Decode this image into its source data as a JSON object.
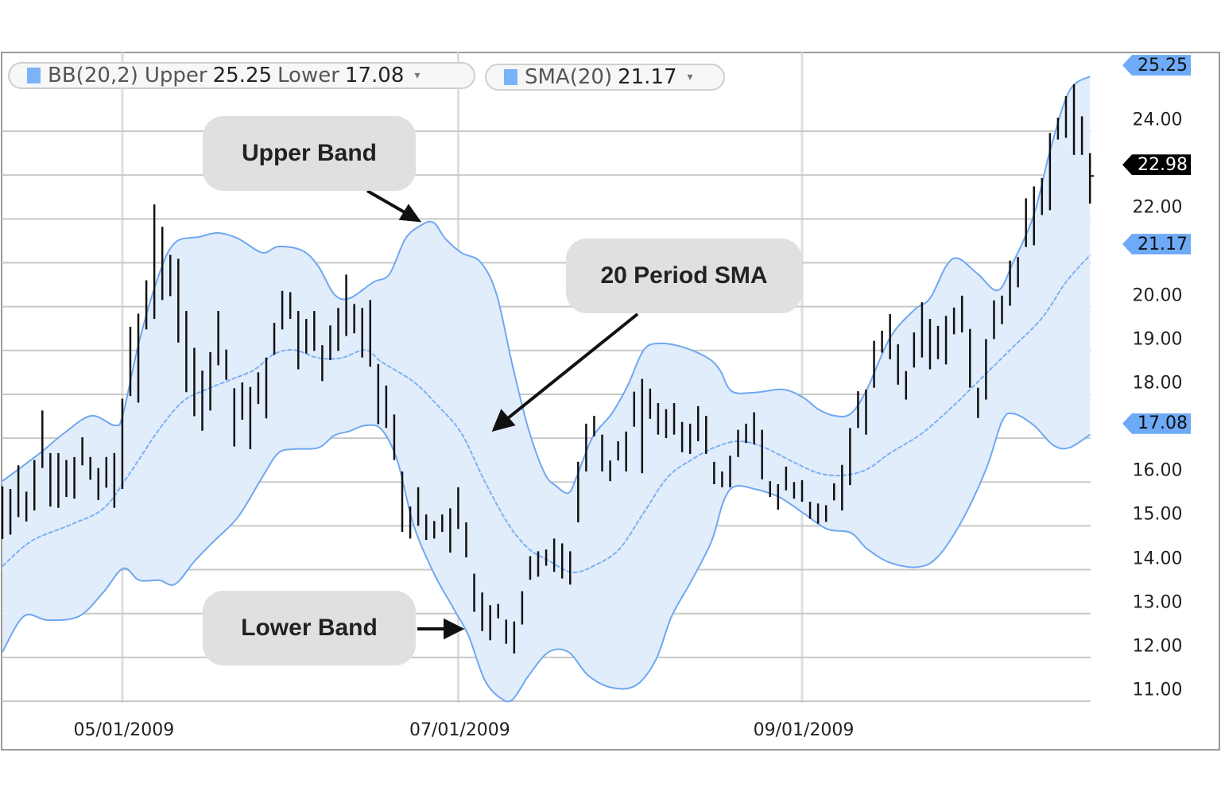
{
  "legend": [
    {
      "label": "BB(20,2)",
      "upper_label": "Upper",
      "upper": "25.25",
      "lower_label": "Lower",
      "lower": "17.08",
      "caret": "▾"
    },
    {
      "label": "SMA(20)",
      "value": "21.17",
      "caret": "▾"
    }
  ],
  "callouts": {
    "upper": "Upper Band",
    "sma": "20 Period SMA",
    "lower": "Lower Band"
  },
  "colors": {
    "band_line": "#6fa8f0",
    "band_fill": "#e2edfc",
    "bars": "#111111",
    "tag_blue": "#6eaaf6",
    "tag_black": "#000000",
    "grid": "#c8c8c8"
  },
  "chart_data": {
    "type": "ohlc-bar-with-bollinger-bands",
    "title": "",
    "ylim": [
      9.9,
      25.8
    ],
    "grid": true,
    "y_ticks": [
      "11.00",
      "12.00",
      "13.00",
      "14.00",
      "15.00",
      "16.00",
      "18.00",
      "19.00",
      "20.00",
      "22.00",
      "24.00"
    ],
    "y_tick_values": [
      11,
      12,
      13,
      14,
      15,
      16,
      18,
      19,
      20,
      22,
      24
    ],
    "x_ticks": [
      {
        "label": "05/01/2009",
        "index": 15
      },
      {
        "label": "07/01/2009",
        "index": 57
      },
      {
        "label": "09/01/2009",
        "index": 100
      }
    ],
    "price_tags": [
      {
        "label": "25.25",
        "value": 25.25,
        "style": "blue"
      },
      {
        "label": "22.98",
        "value": 22.98,
        "style": "black"
      },
      {
        "label": "21.17",
        "value": 21.17,
        "style": "blue"
      },
      {
        "label": "17.08",
        "value": 17.08,
        "style": "blue"
      }
    ],
    "last_close": 22.98,
    "bars_high_low": [
      [
        15.9,
        14.7
      ],
      [
        15.84,
        14.8
      ],
      [
        16.38,
        15.2
      ],
      [
        15.78,
        15.1
      ],
      [
        16.5,
        15.35
      ],
      [
        17.63,
        16.32
      ],
      [
        16.66,
        15.44
      ],
      [
        16.66,
        15.41
      ],
      [
        16.5,
        15.66
      ],
      [
        16.57,
        15.62
      ],
      [
        17.02,
        16.38
      ],
      [
        16.57,
        16.05
      ],
      [
        16.32,
        15.59
      ],
      [
        16.57,
        15.87
      ],
      [
        16.66,
        15.41
      ],
      [
        17.9,
        15.84
      ],
      [
        19.54,
        17.96
      ],
      [
        19.84,
        17.81
      ],
      [
        20.6,
        19.48
      ],
      [
        22.33,
        19.72
      ],
      [
        21.82,
        20.15
      ],
      [
        21.18,
        20.24
      ],
      [
        21.09,
        19.18
      ],
      [
        19.9,
        18.05
      ],
      [
        19.06,
        17.5
      ],
      [
        18.54,
        17.17
      ],
      [
        18.96,
        17.63
      ],
      [
        19.9,
        18.66
      ],
      [
        19.02,
        18.33
      ],
      [
        18.14,
        16.81
      ],
      [
        18.27,
        17.42
      ],
      [
        18.17,
        16.75
      ],
      [
        18.5,
        17.78
      ],
      [
        18.84,
        17.45
      ],
      [
        19.63,
        18.9
      ],
      [
        20.36,
        19.48
      ],
      [
        20.33,
        19.72
      ],
      [
        19.9,
        18.57
      ],
      [
        19.72,
        18.93
      ],
      [
        19.9,
        18.99
      ],
      [
        19.12,
        18.3
      ],
      [
        19.57,
        18.78
      ],
      [
        19.97,
        18.99
      ],
      [
        20.73,
        19.33
      ],
      [
        20.06,
        19.39
      ],
      [
        19.97,
        18.84
      ],
      [
        20.15,
        18.63
      ],
      [
        18.69,
        17.32
      ],
      [
        18.2,
        17.23
      ],
      [
        17.54,
        16.5
      ],
      [
        16.24,
        14.86
      ],
      [
        15.44,
        14.71
      ],
      [
        15.88,
        15.0
      ],
      [
        15.26,
        14.68
      ],
      [
        15.11,
        14.71
      ],
      [
        15.26,
        14.86
      ],
      [
        15.4,
        14.39
      ],
      [
        15.88,
        14.93
      ],
      [
        15.08,
        14.28
      ],
      [
        13.91,
        13.04
      ],
      [
        13.48,
        12.6
      ],
      [
        13.19,
        12.39
      ],
      [
        13.22,
        12.89
      ],
      [
        12.86,
        12.31
      ],
      [
        12.82,
        12.09
      ],
      [
        13.51,
        12.75
      ],
      [
        14.31,
        13.77
      ],
      [
        14.42,
        13.84
      ],
      [
        14.46,
        14.09
      ],
      [
        14.71,
        13.95
      ],
      [
        14.6,
        13.8
      ],
      [
        14.42,
        13.66
      ],
      [
        16.46,
        15.08
      ],
      [
        17.33,
        16.24
      ],
      [
        17.51,
        17.04
      ],
      [
        17.08,
        16.24
      ],
      [
        16.49,
        16.02
      ],
      [
        16.93,
        16.49
      ],
      [
        17.15,
        16.24
      ],
      [
        18.06,
        17.26
      ],
      [
        18.35,
        16.2
      ],
      [
        18.13,
        17.44
      ],
      [
        17.8,
        17.08
      ],
      [
        17.66,
        17.0
      ],
      [
        17.8,
        17.08
      ],
      [
        17.37,
        16.68
      ],
      [
        17.33,
        16.64
      ],
      [
        17.73,
        16.93
      ],
      [
        17.51,
        16.64
      ],
      [
        16.46,
        15.95
      ],
      [
        16.24,
        15.88
      ],
      [
        16.6,
        15.88
      ],
      [
        17.19,
        16.57
      ],
      [
        17.33,
        16.89
      ],
      [
        17.59,
        16.86
      ],
      [
        17.19,
        16.06
      ],
      [
        16.02,
        15.66
      ],
      [
        15.95,
        15.37
      ],
      [
        16.35,
        15.81
      ],
      [
        16.0,
        15.62
      ],
      [
        16.04,
        15.55
      ],
      [
        15.55,
        15.16
      ],
      [
        15.51,
        15.05
      ],
      [
        15.47,
        15.09
      ],
      [
        15.97,
        15.58
      ],
      [
        16.39,
        15.35
      ],
      [
        17.23,
        15.93
      ],
      [
        18.07,
        17.23
      ],
      [
        18.11,
        17.08
      ],
      [
        19.22,
        18.15
      ],
      [
        19.45,
        18.95
      ],
      [
        19.83,
        18.8
      ],
      [
        19.14,
        18.22
      ],
      [
        18.53,
        17.88
      ],
      [
        19.41,
        18.61
      ],
      [
        20.1,
        18.84
      ],
      [
        19.72,
        18.57
      ],
      [
        19.56,
        18.8
      ],
      [
        19.79,
        18.68
      ],
      [
        19.98,
        19.37
      ],
      [
        20.25,
        19.41
      ],
      [
        19.49,
        18.15
      ],
      [
        18.15,
        17.46
      ],
      [
        19.26,
        17.88
      ],
      [
        20.14,
        19.26
      ],
      [
        20.25,
        19.6
      ],
      [
        21.05,
        20.02
      ],
      [
        21.13,
        20.44
      ],
      [
        22.47,
        21.36
      ],
      [
        22.74,
        21.4
      ],
      [
        22.93,
        22.09
      ],
      [
        23.96,
        22.2
      ],
      [
        24.31,
        23.81
      ],
      [
        24.8,
        23.85
      ],
      [
        25.07,
        23.46
      ],
      [
        24.34,
        23.46
      ],
      [
        23.5,
        22.35
      ]
    ],
    "upper_band": [
      [
        0,
        16.02
      ],
      [
        4.7,
        16.66
      ],
      [
        7.7,
        17.11
      ],
      [
        11.1,
        17.51
      ],
      [
        14.1,
        17.29
      ],
      [
        15.1,
        17.56
      ],
      [
        17.1,
        19.2
      ],
      [
        19.6,
        20.74
      ],
      [
        21.6,
        21.46
      ],
      [
        24.6,
        21.59
      ],
      [
        27,
        21.68
      ],
      [
        29.5,
        21.55
      ],
      [
        32.5,
        21.23
      ],
      [
        34.5,
        21.37
      ],
      [
        37.5,
        21.28
      ],
      [
        39.5,
        20.92
      ],
      [
        41.5,
        20.28
      ],
      [
        43.4,
        20.19
      ],
      [
        46.4,
        20.56
      ],
      [
        48.4,
        20.74
      ],
      [
        50.4,
        21.55
      ],
      [
        52.4,
        21.86
      ],
      [
        53.9,
        21.92
      ],
      [
        55.4,
        21.55
      ],
      [
        57.4,
        21.23
      ],
      [
        59.8,
        21.01
      ],
      [
        61.8,
        20.28
      ],
      [
        63.8,
        18.65
      ],
      [
        65.8,
        17.2
      ],
      [
        67.8,
        16.2
      ],
      [
        69.3,
        15.9
      ],
      [
        70.8,
        15.75
      ],
      [
        71.8,
        16.11
      ],
      [
        73.8,
        17.02
      ],
      [
        76.2,
        17.56
      ],
      [
        78.2,
        18.2
      ],
      [
        80.2,
        19.01
      ],
      [
        82.2,
        19.16
      ],
      [
        85.2,
        19.07
      ],
      [
        88.2,
        18.83
      ],
      [
        89.7,
        18.56
      ],
      [
        91.2,
        18.07
      ],
      [
        94.1,
        18.04
      ],
      [
        97.6,
        18.11
      ],
      [
        100.1,
        17.93
      ],
      [
        102.1,
        17.65
      ],
      [
        104.1,
        17.51
      ],
      [
        106.1,
        17.56
      ],
      [
        108.1,
        18.11
      ],
      [
        111,
        19.29
      ],
      [
        114,
        19.92
      ],
      [
        116,
        20.19
      ],
      [
        118,
        20.92
      ],
      [
        119.5,
        21.1
      ],
      [
        122,
        20.74
      ],
      [
        124.5,
        20.37
      ],
      [
        126.4,
        21.01
      ],
      [
        129,
        22.1
      ],
      [
        131,
        23.55
      ],
      [
        133.4,
        24.91
      ],
      [
        136,
        25.25
      ]
    ],
    "middle_sma": [
      [
        0,
        14.08
      ],
      [
        3.7,
        14.66
      ],
      [
        8.6,
        15.03
      ],
      [
        12.6,
        15.39
      ],
      [
        15.6,
        16.11
      ],
      [
        19.6,
        17.2
      ],
      [
        22.6,
        17.84
      ],
      [
        25.5,
        18.11
      ],
      [
        28.5,
        18.33
      ],
      [
        31.5,
        18.56
      ],
      [
        34,
        18.92
      ],
      [
        36.5,
        19.01
      ],
      [
        39.5,
        18.83
      ],
      [
        42.4,
        18.83
      ],
      [
        45.4,
        19.01
      ],
      [
        47.4,
        18.74
      ],
      [
        51.4,
        18.29
      ],
      [
        54.4,
        17.75
      ],
      [
        57.4,
        17.11
      ],
      [
        60.3,
        16.02
      ],
      [
        63.3,
        15.03
      ],
      [
        65.8,
        14.48
      ],
      [
        68.3,
        14.21
      ],
      [
        71.3,
        13.94
      ],
      [
        74.3,
        14.12
      ],
      [
        77.2,
        14.48
      ],
      [
        80.2,
        15.3
      ],
      [
        83.2,
        16.11
      ],
      [
        86.2,
        16.51
      ],
      [
        89.2,
        16.8
      ],
      [
        92.1,
        16.93
      ],
      [
        95.1,
        16.8
      ],
      [
        99.1,
        16.44
      ],
      [
        102.1,
        16.2
      ],
      [
        105.1,
        16.15
      ],
      [
        108.1,
        16.29
      ],
      [
        111,
        16.66
      ],
      [
        115,
        17.11
      ],
      [
        119,
        17.75
      ],
      [
        122,
        18.29
      ],
      [
        126,
        19.01
      ],
      [
        130,
        19.74
      ],
      [
        133,
        20.56
      ],
      [
        136,
        21.17
      ]
    ],
    "lower_band": [
      [
        0,
        12.12
      ],
      [
        2.7,
        12.94
      ],
      [
        5.7,
        12.85
      ],
      [
        9.6,
        12.94
      ],
      [
        12.6,
        13.48
      ],
      [
        15.1,
        14.03
      ],
      [
        17.1,
        13.76
      ],
      [
        19.6,
        13.76
      ],
      [
        21.6,
        13.67
      ],
      [
        24.1,
        14.21
      ],
      [
        26.5,
        14.66
      ],
      [
        29.5,
        15.21
      ],
      [
        32.5,
        16.11
      ],
      [
        34.5,
        16.66
      ],
      [
        36.5,
        16.75
      ],
      [
        39.5,
        16.78
      ],
      [
        41.5,
        17.06
      ],
      [
        43.4,
        17.16
      ],
      [
        45.4,
        17.29
      ],
      [
        47.4,
        17.2
      ],
      [
        49.4,
        16.48
      ],
      [
        51.4,
        15.03
      ],
      [
        53.9,
        13.94
      ],
      [
        56.4,
        13.12
      ],
      [
        58.3,
        12.49
      ],
      [
        60.3,
        11.49
      ],
      [
        62.3,
        11.07
      ],
      [
        63.8,
        11.04
      ],
      [
        65.8,
        11.58
      ],
      [
        68.3,
        12.12
      ],
      [
        70.8,
        12.12
      ],
      [
        73.3,
        11.58
      ],
      [
        76.2,
        11.31
      ],
      [
        79.2,
        11.36
      ],
      [
        81.7,
        11.94
      ],
      [
        83.7,
        12.94
      ],
      [
        86.2,
        13.76
      ],
      [
        88.7,
        14.66
      ],
      [
        90.2,
        15.57
      ],
      [
        91.6,
        15.9
      ],
      [
        94.1,
        15.84
      ],
      [
        97.1,
        15.66
      ],
      [
        100.1,
        15.3
      ],
      [
        103.1,
        14.93
      ],
      [
        106.1,
        14.84
      ],
      [
        108.1,
        14.48
      ],
      [
        111,
        14.16
      ],
      [
        114.5,
        14.06
      ],
      [
        117,
        14.3
      ],
      [
        120,
        15.12
      ],
      [
        123,
        16.29
      ],
      [
        125,
        17.38
      ],
      [
        126.4,
        17.56
      ],
      [
        129,
        17.29
      ],
      [
        131.4,
        16.84
      ],
      [
        133.4,
        16.78
      ],
      [
        136,
        17.08
      ]
    ]
  }
}
